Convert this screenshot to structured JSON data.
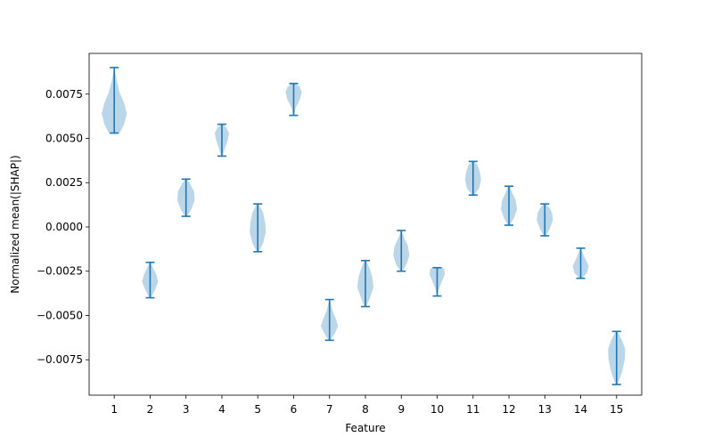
{
  "chart_data": {
    "type": "violin",
    "title": "",
    "xlabel": "Feature",
    "ylabel": "Normalized mean(|SHAP|)",
    "ylim": [
      -0.0095,
      0.0098
    ],
    "xlim": [
      0.3,
      15.7
    ],
    "x_ticks": [
      "1",
      "2",
      "3",
      "4",
      "5",
      "6",
      "7",
      "8",
      "9",
      "10",
      "11",
      "12",
      "13",
      "14",
      "15"
    ],
    "y_ticks": [
      "−0.0075",
      "−0.0050",
      "−0.0025",
      "0.0000",
      "0.0025",
      "0.0050",
      "0.0075"
    ],
    "y_tick_values": [
      -0.0075,
      -0.005,
      -0.0025,
      0.0,
      0.0025,
      0.005,
      0.0075
    ],
    "grid": false,
    "colors": {
      "body": "#1f77b4",
      "body_opacity": 0.3,
      "whisker": "#1f77b4"
    },
    "series": [
      {
        "category": "1",
        "min": 0.0053,
        "max": 0.009,
        "profile": [
          [
            0.0053,
            0.3
          ],
          [
            0.0058,
            0.55
          ],
          [
            0.0064,
            0.7
          ],
          [
            0.007,
            0.55
          ],
          [
            0.0076,
            0.3
          ],
          [
            0.0082,
            0.15
          ],
          [
            0.0087,
            0.06
          ],
          [
            0.009,
            0.02
          ]
        ]
      },
      {
        "category": "2",
        "min": -0.004,
        "max": -0.002,
        "profile": [
          [
            -0.004,
            0.05
          ],
          [
            -0.0036,
            0.25
          ],
          [
            -0.0031,
            0.45
          ],
          [
            -0.0027,
            0.35
          ],
          [
            -0.0023,
            0.15
          ],
          [
            -0.002,
            0.03
          ]
        ]
      },
      {
        "category": "3",
        "min": 0.0006,
        "max": 0.0027,
        "profile": [
          [
            0.0006,
            0.05
          ],
          [
            0.001,
            0.3
          ],
          [
            0.0015,
            0.48
          ],
          [
            0.002,
            0.45
          ],
          [
            0.0024,
            0.25
          ],
          [
            0.0027,
            0.05
          ]
        ]
      },
      {
        "category": "4",
        "min": 0.004,
        "max": 0.0058,
        "profile": [
          [
            0.004,
            0.04
          ],
          [
            0.0044,
            0.15
          ],
          [
            0.0049,
            0.32
          ],
          [
            0.0053,
            0.4
          ],
          [
            0.0056,
            0.25
          ],
          [
            0.0058,
            0.08
          ]
        ]
      },
      {
        "category": "5",
        "min": -0.0014,
        "max": 0.0013,
        "profile": [
          [
            -0.0014,
            0.06
          ],
          [
            -0.0009,
            0.3
          ],
          [
            -0.0003,
            0.45
          ],
          [
            0.0002,
            0.42
          ],
          [
            0.0008,
            0.3
          ],
          [
            0.0013,
            0.05
          ]
        ]
      },
      {
        "category": "6",
        "min": 0.0063,
        "max": 0.0081,
        "profile": [
          [
            0.0063,
            0.03
          ],
          [
            0.0067,
            0.1
          ],
          [
            0.0072,
            0.35
          ],
          [
            0.0076,
            0.45
          ],
          [
            0.0079,
            0.35
          ],
          [
            0.0081,
            0.1
          ]
        ]
      },
      {
        "category": "7",
        "min": -0.0064,
        "max": -0.0041,
        "profile": [
          [
            -0.0064,
            0.05
          ],
          [
            -0.006,
            0.3
          ],
          [
            -0.0056,
            0.48
          ],
          [
            -0.0052,
            0.35
          ],
          [
            -0.0047,
            0.15
          ],
          [
            -0.0041,
            0.02
          ]
        ]
      },
      {
        "category": "8",
        "min": -0.0045,
        "max": -0.0019,
        "profile": [
          [
            -0.0045,
            0.05
          ],
          [
            -0.004,
            0.25
          ],
          [
            -0.0034,
            0.45
          ],
          [
            -0.0028,
            0.38
          ],
          [
            -0.0023,
            0.22
          ],
          [
            -0.0019,
            0.05
          ]
        ]
      },
      {
        "category": "9",
        "min": -0.0025,
        "max": -0.0002,
        "profile": [
          [
            -0.0025,
            0.05
          ],
          [
            -0.0021,
            0.3
          ],
          [
            -0.0016,
            0.45
          ],
          [
            -0.0011,
            0.38
          ],
          [
            -0.0006,
            0.15
          ],
          [
            -0.0002,
            0.02
          ]
        ]
      },
      {
        "category": "10",
        "min": -0.0039,
        "max": -0.0023,
        "profile": [
          [
            -0.0039,
            0.02
          ],
          [
            -0.0035,
            0.1
          ],
          [
            -0.0031,
            0.25
          ],
          [
            -0.0027,
            0.42
          ],
          [
            -0.0024,
            0.4
          ],
          [
            -0.0023,
            0.3
          ]
        ]
      },
      {
        "category": "11",
        "min": 0.0018,
        "max": 0.0037,
        "profile": [
          [
            0.0018,
            0.05
          ],
          [
            0.0022,
            0.35
          ],
          [
            0.0027,
            0.45
          ],
          [
            0.0031,
            0.38
          ],
          [
            0.0035,
            0.25
          ],
          [
            0.0037,
            0.05
          ]
        ]
      },
      {
        "category": "12",
        "min": 0.0001,
        "max": 0.0023,
        "profile": [
          [
            0.0001,
            0.05
          ],
          [
            0.0005,
            0.28
          ],
          [
            0.001,
            0.45
          ],
          [
            0.0015,
            0.38
          ],
          [
            0.0019,
            0.2
          ],
          [
            0.0023,
            0.05
          ]
        ]
      },
      {
        "category": "13",
        "min": -0.0005,
        "max": 0.0013,
        "profile": [
          [
            -0.0005,
            0.05
          ],
          [
            -0.0001,
            0.28
          ],
          [
            0.0004,
            0.45
          ],
          [
            0.0008,
            0.4
          ],
          [
            0.0011,
            0.25
          ],
          [
            0.0013,
            0.05
          ]
        ]
      },
      {
        "category": "14",
        "min": -0.0029,
        "max": -0.0012,
        "profile": [
          [
            -0.0029,
            0.05
          ],
          [
            -0.0026,
            0.35
          ],
          [
            -0.0022,
            0.45
          ],
          [
            -0.0018,
            0.25
          ],
          [
            -0.0014,
            0.08
          ],
          [
            -0.0012,
            0.02
          ]
        ]
      },
      {
        "category": "15",
        "min": -0.0089,
        "max": -0.0059,
        "profile": [
          [
            -0.0089,
            0.05
          ],
          [
            -0.0082,
            0.3
          ],
          [
            -0.0075,
            0.45
          ],
          [
            -0.0069,
            0.48
          ],
          [
            -0.0064,
            0.3
          ],
          [
            -0.0059,
            0.05
          ]
        ]
      }
    ]
  }
}
